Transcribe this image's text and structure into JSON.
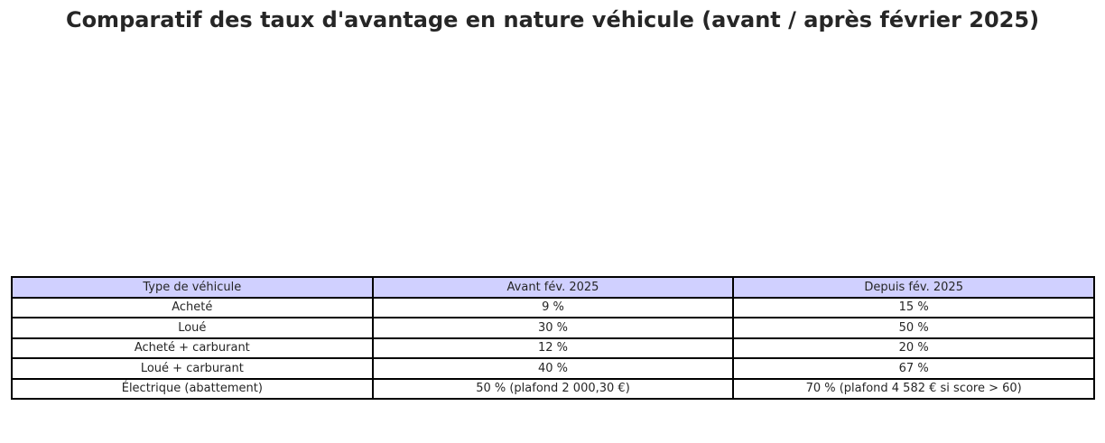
{
  "chart_data": {
    "type": "table",
    "title": "Comparatif des taux d'avantage en nature véhicule (avant / après février 2025)",
    "columns": [
      "Type de véhicule",
      "Avant fév. 2025",
      "Depuis fév. 2025"
    ],
    "rows": [
      [
        "Acheté",
        "9 %",
        "15 %"
      ],
      [
        "Loué",
        "30 %",
        "50 %"
      ],
      [
        "Acheté + carburant",
        "12 %",
        "20 %"
      ],
      [
        "Loué + carburant",
        "40 %",
        "67 %"
      ],
      [
        "Électrique (abattement)",
        "50 % (plafond 2 000,30 €)",
        "70 % (plafond 4 582 € si score > 60)"
      ]
    ],
    "header_color": "#d0d0ff",
    "border_color": "#000000"
  }
}
